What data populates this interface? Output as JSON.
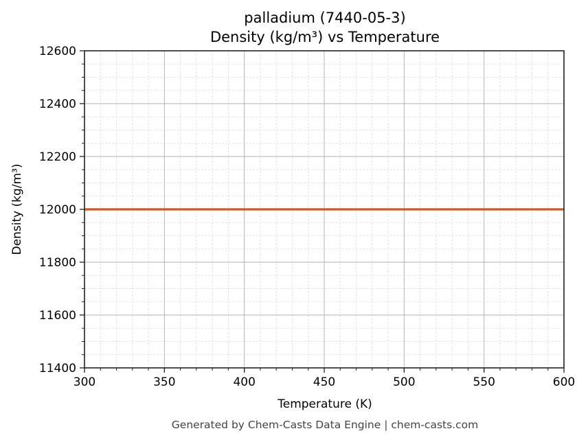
{
  "chart": {
    "title_line1": "palladium (7440-05-3)",
    "title_line2": "Density (kg/m³) vs Temperature",
    "xlabel": "Temperature (K)",
    "ylabel": "Density (kg/m³)",
    "footer": "Generated by Chem-Casts Data Engine | chem-casts.com",
    "line_color": "#d9541e",
    "x_ticks": [
      "300",
      "350",
      "400",
      "450",
      "500",
      "550",
      "600"
    ],
    "y_ticks": [
      "11400",
      "11600",
      "11800",
      "12000",
      "12200",
      "12400",
      "12600"
    ]
  },
  "chart_data": {
    "type": "line",
    "title": "palladium (7440-05-3)\nDensity (kg/m³) vs Temperature",
    "xlabel": "Temperature (K)",
    "ylabel": "Density (kg/m³)",
    "xlim": [
      300,
      600
    ],
    "ylim": [
      11400,
      12600
    ],
    "x_ticks": [
      300,
      350,
      400,
      450,
      500,
      550,
      600
    ],
    "y_ticks": [
      11400,
      11600,
      11800,
      12000,
      12200,
      12400,
      12600
    ],
    "grid": true,
    "minor_grid": true,
    "legend": null,
    "series": [
      {
        "name": "Density",
        "color": "#d9541e",
        "x": [
          300,
          350,
          400,
          450,
          500,
          550,
          600
        ],
        "y": [
          12000,
          12000,
          12000,
          12000,
          12000,
          12000,
          12000
        ]
      }
    ],
    "annotations": [
      "Generated by Chem-Casts Data Engine | chem-casts.com"
    ]
  }
}
